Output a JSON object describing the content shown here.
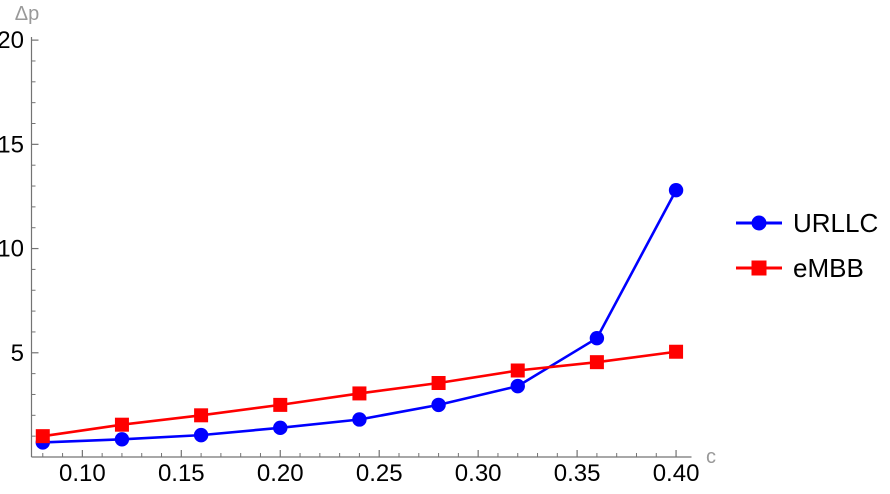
{
  "chart_data": {
    "type": "line",
    "title": "",
    "xlabel": "c",
    "ylabel": "Δp",
    "x": [
      0.08,
      0.12,
      0.16,
      0.2,
      0.24,
      0.28,
      0.32,
      0.36,
      0.4
    ],
    "series": [
      {
        "name": "URLLC",
        "color": "#0000ff",
        "marker": "circle",
        "values": [
          0.7,
          0.85,
          1.05,
          1.4,
          1.8,
          2.5,
          3.4,
          5.7,
          12.8
        ]
      },
      {
        "name": "eMBB",
        "color": "#ff0000",
        "marker": "square",
        "values": [
          1.0,
          1.55,
          2.0,
          2.5,
          3.05,
          3.55,
          4.15,
          4.55,
          5.05
        ]
      }
    ],
    "xlim": [
      0.0743,
      0.4078
    ],
    "ylim": [
      0,
      20.15
    ],
    "x_major_ticks": [
      0.1,
      0.15,
      0.2,
      0.25,
      0.3,
      0.35,
      0.4
    ],
    "x_tick_labels": [
      "0.10",
      "0.15",
      "0.20",
      "0.25",
      "0.30",
      "0.35",
      "0.40"
    ],
    "x_minor_tick_start": 0.08,
    "x_minor_tick_step": 0.01,
    "y_major_ticks": [
      5,
      10,
      15,
      20
    ],
    "y_tick_labels": [
      "5",
      "10",
      "15",
      "20"
    ],
    "y_minor_tick_step": 1,
    "grid": false,
    "legend_position": "right-outside",
    "legend_entries": [
      "URLLC",
      "eMBB"
    ],
    "axis_color": "#737373",
    "axis_label_color": "#999999",
    "tick_label_color": "#000000",
    "background": "#ffffff"
  }
}
